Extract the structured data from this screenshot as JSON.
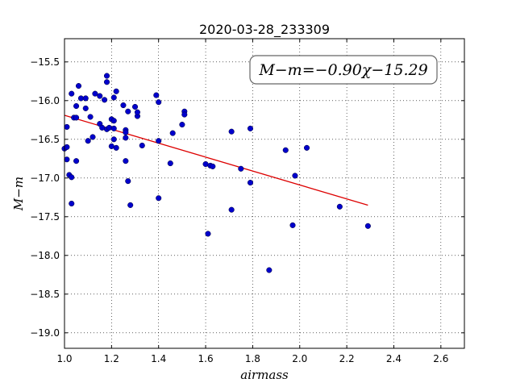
{
  "chart_data": {
    "type": "scatter",
    "title": "2020-03-28_233309",
    "xlabel": "airmass",
    "ylabel": "M−m",
    "xlim": [
      1.0,
      2.7
    ],
    "ylim": [
      -15.2,
      -19.2
    ],
    "y_inverted": true,
    "grid": true,
    "grid_style": "dotted",
    "x_ticks": [
      1.0,
      1.2,
      1.4,
      1.6,
      1.8,
      2.0,
      2.2,
      2.4,
      2.6
    ],
    "x_tick_labels": [
      "1.0",
      "1.2",
      "1.4",
      "1.6",
      "1.8",
      "2.0",
      "2.2",
      "2.4",
      "2.6"
    ],
    "y_ticks": [
      -15.5,
      -16.0,
      -16.5,
      -17.0,
      -17.5,
      -18.0,
      -18.5,
      -19.0
    ],
    "y_tick_labels": [
      "−15.5",
      "−16.0",
      "−16.5",
      "−17.0",
      "−17.5",
      "−18.0",
      "−18.5",
      "−19.0"
    ],
    "annotation": "M−m=−0.90χ−15.29",
    "annotation_placement": "top-right",
    "colors": {
      "points": "#0000cc",
      "fit_line": "#dd0000"
    },
    "fit": {
      "slope": -0.9,
      "intercept": -15.29,
      "x_range": [
        1.0,
        2.29
      ]
    },
    "points": [
      [
        1.0,
        -16.62
      ],
      [
        1.01,
        -16.34
      ],
      [
        1.01,
        -16.6
      ],
      [
        1.01,
        -16.76
      ],
      [
        1.02,
        -16.96
      ],
      [
        1.03,
        -16.99
      ],
      [
        1.03,
        -15.91
      ],
      [
        1.03,
        -17.33
      ],
      [
        1.04,
        -16.22
      ],
      [
        1.05,
        -16.78
      ],
      [
        1.05,
        -16.07
      ],
      [
        1.05,
        -16.22
      ],
      [
        1.06,
        -15.81
      ],
      [
        1.07,
        -15.97
      ],
      [
        1.09,
        -15.97
      ],
      [
        1.09,
        -16.1
      ],
      [
        1.1,
        -16.52
      ],
      [
        1.11,
        -16.21
      ],
      [
        1.12,
        -16.47
      ],
      [
        1.13,
        -15.91
      ],
      [
        1.15,
        -16.3
      ],
      [
        1.15,
        -15.94
      ],
      [
        1.16,
        -16.35
      ],
      [
        1.17,
        -15.99
      ],
      [
        1.18,
        -16.37
      ],
      [
        1.18,
        -15.68
      ],
      [
        1.18,
        -15.76
      ],
      [
        1.19,
        -16.35
      ],
      [
        1.2,
        -16.24
      ],
      [
        1.2,
        -16.59
      ],
      [
        1.21,
        -16.26
      ],
      [
        1.21,
        -16.36
      ],
      [
        1.21,
        -15.96
      ],
      [
        1.21,
        -16.5
      ],
      [
        1.22,
        -16.61
      ],
      [
        1.22,
        -15.88
      ],
      [
        1.25,
        -16.06
      ],
      [
        1.26,
        -16.38
      ],
      [
        1.26,
        -16.41
      ],
      [
        1.26,
        -16.48
      ],
      [
        1.26,
        -16.78
      ],
      [
        1.27,
        -16.14
      ],
      [
        1.27,
        -17.04
      ],
      [
        1.28,
        -17.35
      ],
      [
        1.3,
        -16.08
      ],
      [
        1.31,
        -16.2
      ],
      [
        1.31,
        -16.15
      ],
      [
        1.33,
        -16.58
      ],
      [
        1.39,
        -15.93
      ],
      [
        1.4,
        -16.02
      ],
      [
        1.4,
        -17.26
      ],
      [
        1.4,
        -16.52
      ],
      [
        1.45,
        -16.81
      ],
      [
        1.46,
        -16.42
      ],
      [
        1.5,
        -16.31
      ],
      [
        1.51,
        -16.14
      ],
      [
        1.51,
        -16.18
      ],
      [
        1.6,
        -16.82
      ],
      [
        1.61,
        -17.72
      ],
      [
        1.62,
        -16.84
      ],
      [
        1.63,
        -16.85
      ],
      [
        1.71,
        -16.4
      ],
      [
        1.71,
        -17.41
      ],
      [
        1.75,
        -16.88
      ],
      [
        1.79,
        -16.36
      ],
      [
        1.79,
        -17.06
      ],
      [
        1.87,
        -18.19
      ],
      [
        1.94,
        -16.64
      ],
      [
        1.97,
        -17.61
      ],
      [
        1.98,
        -16.97
      ],
      [
        2.03,
        -16.61
      ],
      [
        2.17,
        -17.37
      ],
      [
        2.29,
        -17.62
      ]
    ]
  }
}
